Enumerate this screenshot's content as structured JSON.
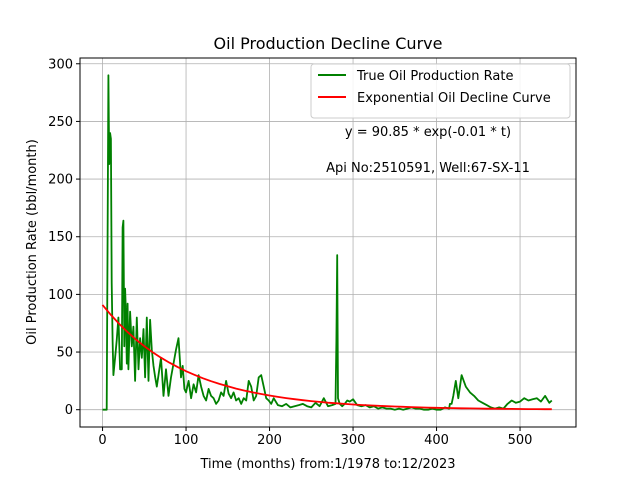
{
  "chart_data": {
    "type": "line",
    "title": "Oil Production Decline Curve",
    "xlabel": "Time (months) from:1/1978 to:12/2023",
    "ylabel": "Oil Production Rate (bbl/month)",
    "xlim": [
      -27,
      567
    ],
    "ylim": [
      -15,
      305
    ],
    "xticks": [
      0,
      100,
      200,
      300,
      400,
      500
    ],
    "yticks": [
      0,
      50,
      100,
      150,
      200,
      250,
      300
    ],
    "grid": true,
    "legend": "top-right",
    "annotations": [
      {
        "text": "y = 90.85 * exp(-0.01 * t)",
        "x": 390,
        "y": 235
      },
      {
        "text": "Api No:2510591, Well:67-SX-11",
        "x": 390,
        "y": 204
      }
    ],
    "series": [
      {
        "name": "True Oil Production Rate",
        "color": "#008000",
        "x": [
          0,
          5,
          6,
          7,
          8,
          9,
          10,
          11,
          12,
          13,
          15,
          17,
          19,
          21,
          23,
          24,
          25,
          26,
          27,
          28,
          29,
          30,
          31,
          33,
          35,
          37,
          39,
          41,
          43,
          45,
          47,
          49,
          51,
          53,
          55,
          57,
          59,
          61,
          63,
          65,
          67,
          70,
          73,
          76,
          79,
          82,
          85,
          88,
          91,
          94,
          96,
          98,
          100,
          103,
          106,
          109,
          112,
          115,
          118,
          121,
          124,
          127,
          130,
          133,
          136,
          139,
          142,
          145,
          148,
          151,
          154,
          157,
          160,
          163,
          166,
          169,
          172,
          175,
          178,
          181,
          184,
          187,
          190,
          193,
          196,
          199,
          202,
          205,
          210,
          215,
          220,
          225,
          230,
          235,
          240,
          245,
          250,
          255,
          260,
          265,
          270,
          275,
          279,
          280,
          281,
          282,
          284,
          287,
          290,
          293,
          296,
          300,
          305,
          310,
          315,
          320,
          325,
          330,
          335,
          340,
          345,
          350,
          355,
          360,
          365,
          370,
          375,
          380,
          385,
          390,
          395,
          400,
          405,
          410,
          415,
          416,
          418,
          420,
          423,
          426,
          430,
          435,
          440,
          445,
          450,
          455,
          460,
          465,
          470,
          475,
          480,
          485,
          490,
          495,
          500,
          505,
          510,
          515,
          520,
          525,
          530,
          535,
          538
        ],
        "y": [
          0,
          0,
          150,
          290,
          213,
          240,
          235,
          110,
          60,
          30,
          45,
          60,
          80,
          35,
          35,
          158,
          164,
          55,
          105,
          85,
          40,
          92,
          35,
          85,
          55,
          72,
          25,
          80,
          35,
          62,
          45,
          70,
          28,
          80,
          25,
          78,
          52,
          38,
          28,
          20,
          30,
          45,
          12,
          35,
          12,
          28,
          40,
          52,
          62,
          28,
          38,
          18,
          15,
          25,
          10,
          22,
          15,
          30,
          20,
          12,
          8,
          18,
          12,
          10,
          5,
          8,
          15,
          12,
          25,
          14,
          10,
          15,
          8,
          10,
          5,
          10,
          8,
          25,
          20,
          8,
          12,
          28,
          30,
          20,
          10,
          8,
          5,
          10,
          4,
          3,
          5,
          2,
          3,
          4,
          5,
          3,
          2,
          6,
          3,
          10,
          3,
          4,
          5,
          60,
          134,
          10,
          5,
          3,
          5,
          8,
          7,
          9,
          4,
          3,
          4,
          2,
          3,
          1,
          2,
          1,
          1,
          0,
          1,
          0,
          1,
          2,
          1,
          1,
          0,
          0,
          1,
          0,
          0,
          2,
          1,
          5,
          5,
          12,
          25,
          10,
          30,
          20,
          15,
          12,
          8,
          6,
          4,
          2,
          1,
          2,
          1,
          5,
          8,
          6,
          7,
          10,
          8,
          9,
          10,
          7,
          12,
          6,
          8
        ]
      },
      {
        "name": "Exponential Oil Decline Curve",
        "color": "#ff0000",
        "function": {
          "a": 90.85,
          "b": 0.01
        },
        "x": [
          0,
          10,
          20,
          30,
          40,
          50,
          60,
          70,
          80,
          90,
          100,
          110,
          120,
          130,
          140,
          150,
          160,
          170,
          180,
          190,
          200,
          210,
          220,
          230,
          240,
          250,
          260,
          270,
          280,
          290,
          300,
          310,
          320,
          330,
          340,
          350,
          360,
          370,
          380,
          390,
          400,
          410,
          420,
          430,
          440,
          450,
          460,
          470,
          480,
          490,
          500,
          510,
          520,
          530,
          538
        ],
        "y": [
          90.85,
          82.2,
          74.38,
          67.3,
          60.9,
          55.1,
          49.86,
          45.11,
          40.82,
          36.94,
          33.42,
          30.24,
          27.36,
          24.76,
          22.4,
          20.27,
          18.34,
          16.6,
          15.02,
          13.59,
          12.3,
          11.13,
          10.07,
          9.11,
          8.24,
          7.46,
          6.75,
          6.1,
          5.52,
          5.0,
          4.52,
          4.09,
          3.7,
          3.35,
          3.03,
          2.74,
          2.48,
          2.25,
          2.03,
          1.84,
          1.66,
          1.51,
          1.36,
          1.23,
          1.12,
          1.01,
          0.91,
          0.83,
          0.75,
          0.68,
          0.61,
          0.55,
          0.5,
          0.45,
          0.42
        ]
      }
    ]
  }
}
